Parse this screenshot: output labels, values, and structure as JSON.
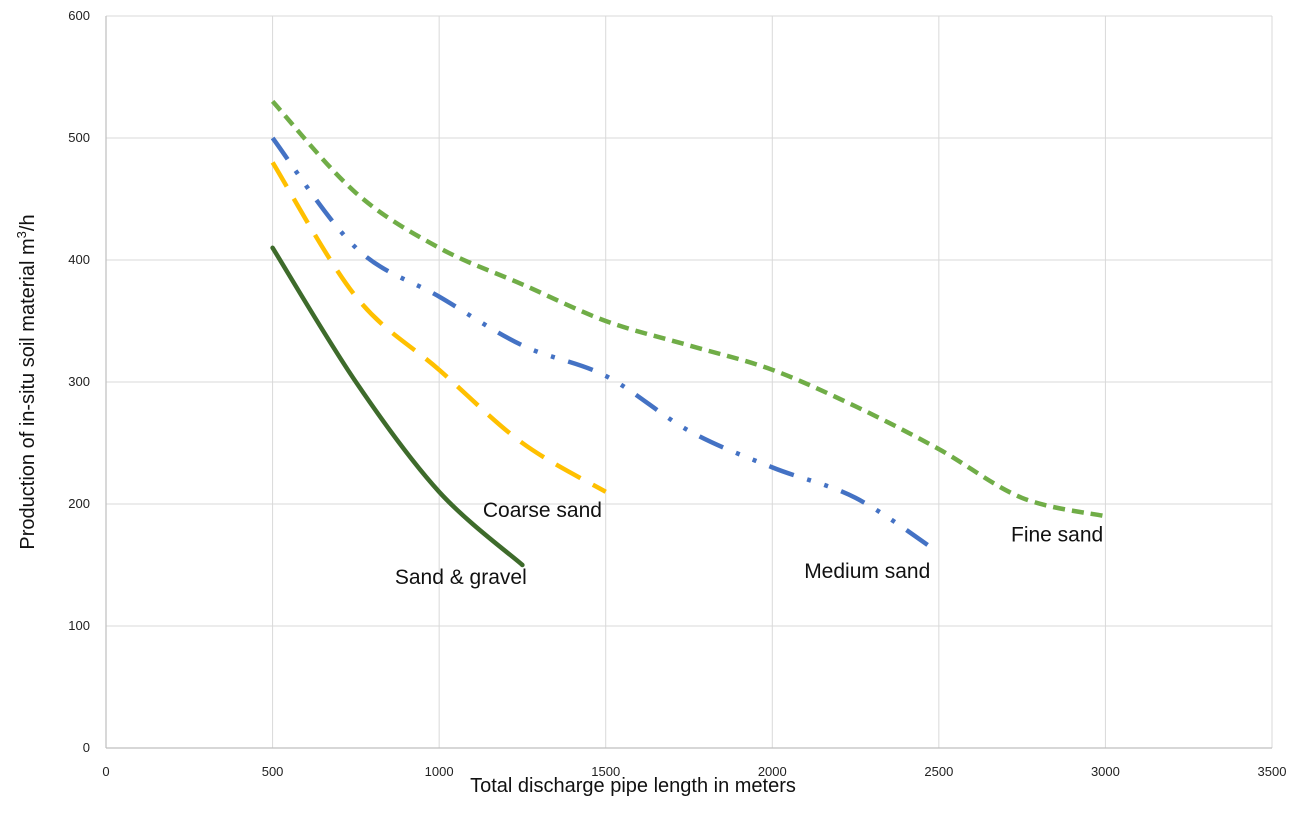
{
  "chart_data": {
    "type": "line",
    "xlabel": "Total discharge pipe length in meters",
    "ylabel_text": "Production of in-situ soil material m",
    "ylabel_superscript": "3",
    "ylabel_suffix": "/h",
    "xlim": [
      0,
      3500
    ],
    "ylim": [
      0,
      600
    ],
    "x_ticks": [
      0,
      500,
      1000,
      1500,
      2000,
      2500,
      3000,
      3500
    ],
    "y_ticks": [
      0,
      100,
      200,
      300,
      400,
      500,
      600
    ],
    "grid": true,
    "series": [
      {
        "name": "Sand & gravel",
        "color": "#3e6b2b",
        "style": "solid",
        "points": [
          [
            500,
            410
          ],
          [
            750,
            300
          ],
          [
            1000,
            210
          ],
          [
            1250,
            150
          ]
        ]
      },
      {
        "name": "Coarse sand",
        "color": "#ffc000",
        "style": "long-dash",
        "points": [
          [
            500,
            480
          ],
          [
            750,
            370
          ],
          [
            1000,
            310
          ],
          [
            1250,
            250
          ],
          [
            1500,
            210
          ]
        ]
      },
      {
        "name": "Medium sand",
        "color": "#4472c4",
        "style": "dash-dot-dot",
        "points": [
          [
            500,
            500
          ],
          [
            750,
            410
          ],
          [
            1000,
            370
          ],
          [
            1250,
            330
          ],
          [
            1500,
            305
          ],
          [
            1750,
            260
          ],
          [
            2000,
            230
          ],
          [
            2250,
            205
          ],
          [
            2500,
            160
          ]
        ]
      },
      {
        "name": "Fine sand",
        "color": "#70ad47",
        "style": "short-dash",
        "points": [
          [
            500,
            530
          ],
          [
            750,
            455
          ],
          [
            1000,
            410
          ],
          [
            1250,
            380
          ],
          [
            1500,
            350
          ],
          [
            1750,
            330
          ],
          [
            2000,
            310
          ],
          [
            2250,
            280
          ],
          [
            2500,
            245
          ],
          [
            2750,
            205
          ],
          [
            3000,
            190
          ]
        ]
      }
    ],
    "annotations": [
      {
        "text": "Sand & gravel",
        "x": 1065,
        "y": 140
      },
      {
        "text": "Coarse sand",
        "x": 1310,
        "y": 195
      },
      {
        "text": "Medium sand",
        "x": 2285,
        "y": 145
      },
      {
        "text": "Fine sand",
        "x": 2855,
        "y": 175
      }
    ]
  }
}
